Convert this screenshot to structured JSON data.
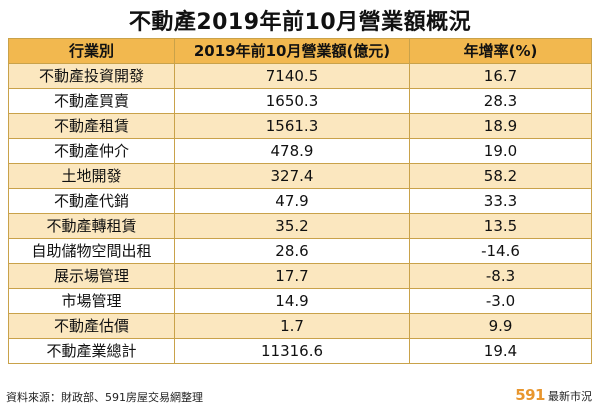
{
  "title": "不動產2019年前10月營業額概況",
  "table": {
    "headers": [
      "行業別",
      "2019年前10月營業額(億元)",
      "年增率(%)"
    ],
    "rows": [
      [
        "不動產投資開發",
        "7140.5",
        "16.7"
      ],
      [
        "不動產買賣",
        "1650.3",
        "28.3"
      ],
      [
        "不動產租賃",
        "1561.3",
        "18.9"
      ],
      [
        "不動產仲介",
        "478.9",
        "19.0"
      ],
      [
        "土地開發",
        "327.4",
        "58.2"
      ],
      [
        "不動產代銷",
        "47.9",
        "33.3"
      ],
      [
        "不動產轉租賃",
        "35.2",
        "13.5"
      ],
      [
        "自助儲物空間出租",
        "28.6",
        "-14.6"
      ],
      [
        "展示場管理",
        "17.7",
        "-8.3"
      ],
      [
        "市場管理",
        "14.9",
        "-3.0"
      ],
      [
        "不動產估價",
        "1.7",
        "9.9"
      ],
      [
        "不動產業總計",
        "11316.6",
        "19.4"
      ]
    ]
  },
  "footer": {
    "source": "資料來源：財政部、591房屋交易網整理",
    "brand_number": "591",
    "brand_text": "最新市況"
  },
  "colors": {
    "header_bg": "#f2b84f",
    "row_stripe": "#fbe7bf",
    "border": "#c9a24a",
    "brand_orange": "#e8962e"
  }
}
